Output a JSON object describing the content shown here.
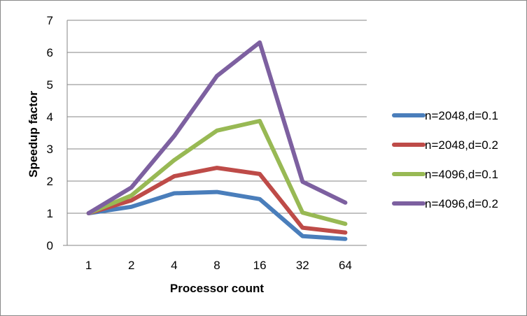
{
  "chart_data": {
    "type": "line",
    "title": "",
    "xlabel": "Processor count",
    "ylabel": "Speedup factor",
    "categories": [
      "1",
      "2",
      "4",
      "8",
      "16",
      "32",
      "64"
    ],
    "ylim": [
      0,
      7
    ],
    "yticks": [
      0,
      1,
      2,
      3,
      4,
      5,
      6,
      7
    ],
    "grid": true,
    "legend_position": "right",
    "series": [
      {
        "name": "n=2048,d=0.1",
        "color": "#4a7ebb",
        "values": [
          1,
          1.2,
          1.62,
          1.66,
          1.44,
          0.29,
          0.2
        ]
      },
      {
        "name": "n=2048,d=0.2",
        "color": "#be4b48",
        "values": [
          1,
          1.4,
          2.15,
          2.41,
          2.22,
          0.55,
          0.4
        ]
      },
      {
        "name": "n=4096,d=0.1",
        "color": "#98b954",
        "values": [
          1,
          1.55,
          2.65,
          3.57,
          3.87,
          1.02,
          0.67
        ]
      },
      {
        "name": "n=4096,d=0.2",
        "color": "#7d60a0",
        "values": [
          1,
          1.8,
          3.4,
          5.27,
          6.31,
          1.98,
          1.33
        ]
      }
    ]
  }
}
